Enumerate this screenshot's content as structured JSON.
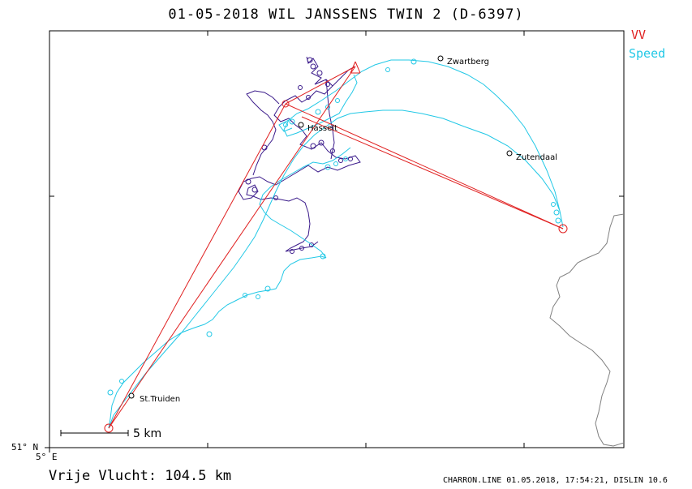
{
  "title": "01-05-2018   WIL JANSSENS   TWIN 2 (D-6397)",
  "legend": {
    "vv_label": "VV",
    "vv_color": "#e02020",
    "speed_label": "Speed",
    "speed_color": "#22c8e6"
  },
  "axes": {
    "lat_label": "51° N",
    "lon_label": "5° E"
  },
  "scale_bar": {
    "label": "5 km"
  },
  "towns": [
    {
      "name": "Zwartberg"
    },
    {
      "name": "Hasselt"
    },
    {
      "name": "Zutendaal"
    },
    {
      "name": "St.Truiden"
    }
  ],
  "colors": {
    "task_line": "#e02020",
    "track_speed": "#22c8e6",
    "track_vv": "#3a1a8a",
    "border": "#808080"
  },
  "distance": "Vrije Vlucht:  104.5 km",
  "footer": "CHARRON.LINE 01.05.2018, 17:54:21, DISLIN 10.6"
}
